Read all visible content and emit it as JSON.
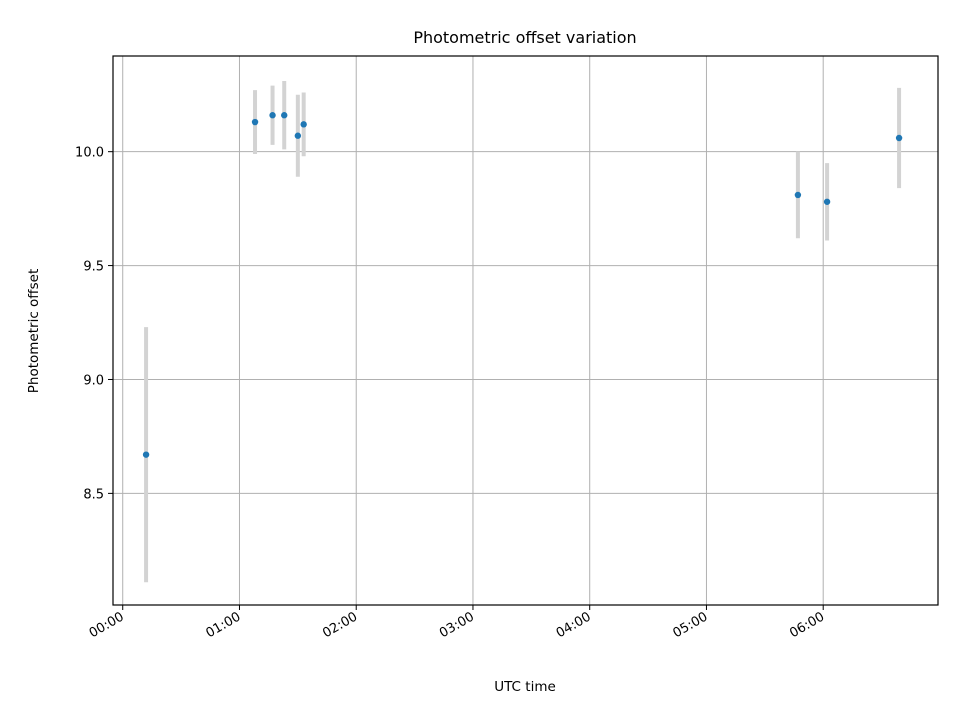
{
  "chart_data": {
    "type": "scatter",
    "title": "Photometric offset variation",
    "xlabel": "UTC time",
    "ylabel": "Photometric offset",
    "x_unit": "UTC time (HH:MM)",
    "xlim": [
      "23:55",
      "06:59"
    ],
    "ylim": [
      8.01,
      10.42
    ],
    "x_ticks": [
      "00:00",
      "01:00",
      "02:00",
      "03:00",
      "04:00",
      "05:00",
      "06:00"
    ],
    "y_ticks": [
      "8.5",
      "9.0",
      "9.5",
      "10.0"
    ],
    "y_tick_values": [
      8.5,
      9.0,
      9.5,
      10.0
    ],
    "grid": true,
    "colors": {
      "points": "#1f77b4",
      "error_bars": "#d3d3d3",
      "grid": "#b0b0b0"
    },
    "series": [
      {
        "points": [
          {
            "x": "00:12",
            "y": 8.67,
            "yerr": 0.56
          },
          {
            "x": "01:08",
            "y": 10.13,
            "yerr": 0.14
          },
          {
            "x": "01:17",
            "y": 10.16,
            "yerr": 0.13
          },
          {
            "x": "01:23",
            "y": 10.16,
            "yerr": 0.15
          },
          {
            "x": "01:30",
            "y": 10.07,
            "yerr": 0.18
          },
          {
            "x": "01:33",
            "y": 10.12,
            "yerr": 0.14
          },
          {
            "x": "05:47",
            "y": 9.81,
            "yerr": 0.19
          },
          {
            "x": "06:02",
            "y": 9.78,
            "yerr": 0.17
          },
          {
            "x": "06:39",
            "y": 10.06,
            "yerr": 0.22
          }
        ]
      }
    ]
  }
}
